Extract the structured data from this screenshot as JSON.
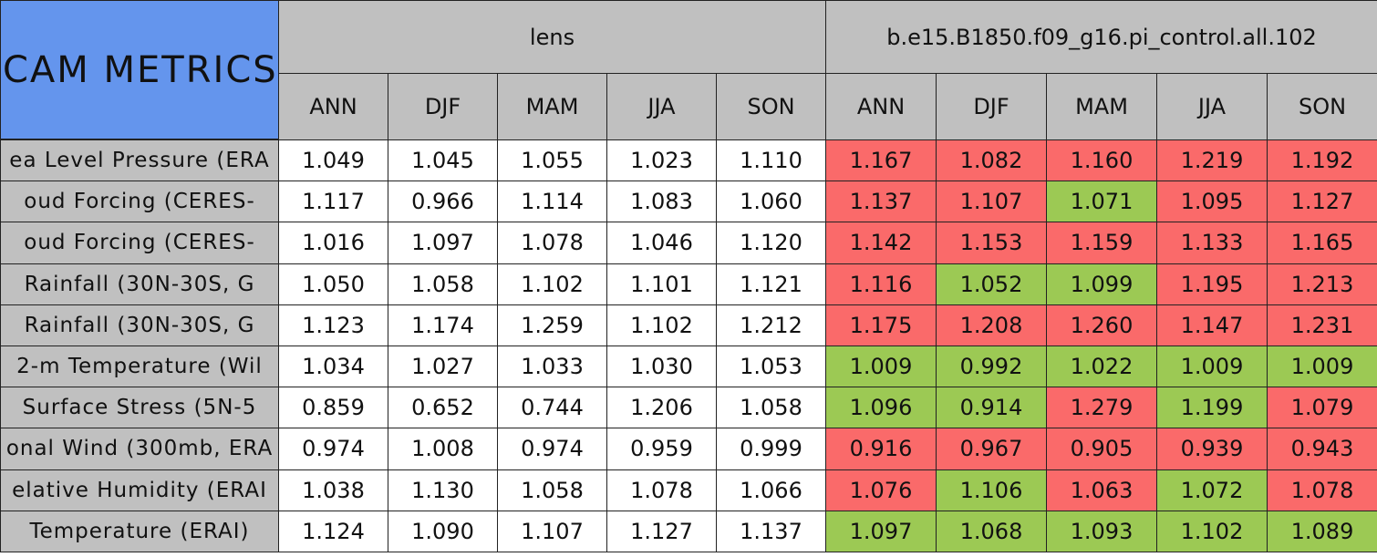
{
  "header": {
    "title": "CAM METRICS"
  },
  "groups": [
    {
      "name": "lens",
      "columns": [
        "ANN",
        "DJF",
        "MAM",
        "JJA",
        "SON"
      ]
    },
    {
      "name": "b.e15.B1850.f09_g16.pi_control.all.102",
      "columns": [
        "ANN",
        "DJF",
        "MAM",
        "JJA",
        "SON"
      ]
    }
  ],
  "rows": [
    {
      "label": "ea Level Pressure (ERA",
      "values": [
        "1.049",
        "1.045",
        "1.055",
        "1.023",
        "1.110",
        "1.167",
        "1.082",
        "1.160",
        "1.219",
        "1.192"
      ],
      "colors": [
        "#ffffff",
        "#ffffff",
        "#ffffff",
        "#ffffff",
        "#ffffff",
        "#fa6a6a",
        "#fa6a6a",
        "#fa6a6a",
        "#fa6a6a",
        "#fa6a6a"
      ]
    },
    {
      "label": "oud Forcing (CERES-",
      "values": [
        "1.117",
        "0.966",
        "1.114",
        "1.083",
        "1.060",
        "1.137",
        "1.107",
        "1.071",
        "1.095",
        "1.127"
      ],
      "colors": [
        "#ffffff",
        "#ffffff",
        "#ffffff",
        "#ffffff",
        "#ffffff",
        "#fa6a6a",
        "#fa6a6a",
        "#9cc954",
        "#fa6a6a",
        "#fa6a6a"
      ]
    },
    {
      "label": "oud Forcing (CERES-",
      "values": [
        "1.016",
        "1.097",
        "1.078",
        "1.046",
        "1.120",
        "1.142",
        "1.153",
        "1.159",
        "1.133",
        "1.165"
      ],
      "colors": [
        "#ffffff",
        "#ffffff",
        "#ffffff",
        "#ffffff",
        "#ffffff",
        "#fa6a6a",
        "#fa6a6a",
        "#fa6a6a",
        "#fa6a6a",
        "#fa6a6a"
      ]
    },
    {
      "label": "Rainfall (30N-30S, G",
      "values": [
        "1.050",
        "1.058",
        "1.102",
        "1.101",
        "1.121",
        "1.116",
        "1.052",
        "1.099",
        "1.195",
        "1.213"
      ],
      "colors": [
        "#ffffff",
        "#ffffff",
        "#ffffff",
        "#ffffff",
        "#ffffff",
        "#fa6a6a",
        "#9cc954",
        "#9cc954",
        "#fa6a6a",
        "#fa6a6a"
      ]
    },
    {
      "label": "Rainfall (30N-30S, G",
      "values": [
        "1.123",
        "1.174",
        "1.259",
        "1.102",
        "1.212",
        "1.175",
        "1.208",
        "1.260",
        "1.147",
        "1.231"
      ],
      "colors": [
        "#ffffff",
        "#ffffff",
        "#ffffff",
        "#ffffff",
        "#ffffff",
        "#fa6a6a",
        "#fa6a6a",
        "#fa6a6a",
        "#fa6a6a",
        "#fa6a6a"
      ]
    },
    {
      "label": "2-m Temperature (Wil",
      "values": [
        "1.034",
        "1.027",
        "1.033",
        "1.030",
        "1.053",
        "1.009",
        "0.992",
        "1.022",
        "1.009",
        "1.009"
      ],
      "colors": [
        "#ffffff",
        "#ffffff",
        "#ffffff",
        "#ffffff",
        "#ffffff",
        "#9cc954",
        "#9cc954",
        "#9cc954",
        "#9cc954",
        "#9cc954"
      ]
    },
    {
      "label": "Surface Stress (5N-5",
      "values": [
        "0.859",
        "0.652",
        "0.744",
        "1.206",
        "1.058",
        "1.096",
        "0.914",
        "1.279",
        "1.199",
        "1.079"
      ],
      "colors": [
        "#ffffff",
        "#ffffff",
        "#ffffff",
        "#ffffff",
        "#ffffff",
        "#9cc954",
        "#9cc954",
        "#fa6a6a",
        "#9cc954",
        "#fa6a6a"
      ]
    },
    {
      "label": "onal Wind (300mb, ERA",
      "values": [
        "0.974",
        "1.008",
        "0.974",
        "0.959",
        "0.999",
        "0.916",
        "0.967",
        "0.905",
        "0.939",
        "0.943"
      ],
      "colors": [
        "#ffffff",
        "#ffffff",
        "#ffffff",
        "#ffffff",
        "#ffffff",
        "#fa6a6a",
        "#fa6a6a",
        "#fa6a6a",
        "#fa6a6a",
        "#fa6a6a"
      ]
    },
    {
      "label": "elative Humidity (ERAI",
      "values": [
        "1.038",
        "1.130",
        "1.058",
        "1.078",
        "1.066",
        "1.076",
        "1.106",
        "1.063",
        "1.072",
        "1.078"
      ],
      "colors": [
        "#ffffff",
        "#ffffff",
        "#ffffff",
        "#ffffff",
        "#ffffff",
        "#fa6a6a",
        "#9cc954",
        "#fa6a6a",
        "#9cc954",
        "#fa6a6a"
      ]
    },
    {
      "label": "Temperature (ERAI)",
      "values": [
        "1.124",
        "1.090",
        "1.107",
        "1.127",
        "1.137",
        "1.097",
        "1.068",
        "1.093",
        "1.102",
        "1.089"
      ],
      "colors": [
        "#ffffff",
        "#ffffff",
        "#ffffff",
        "#ffffff",
        "#ffffff",
        "#9cc954",
        "#9cc954",
        "#9cc954",
        "#9cc954",
        "#9cc954"
      ]
    }
  ]
}
